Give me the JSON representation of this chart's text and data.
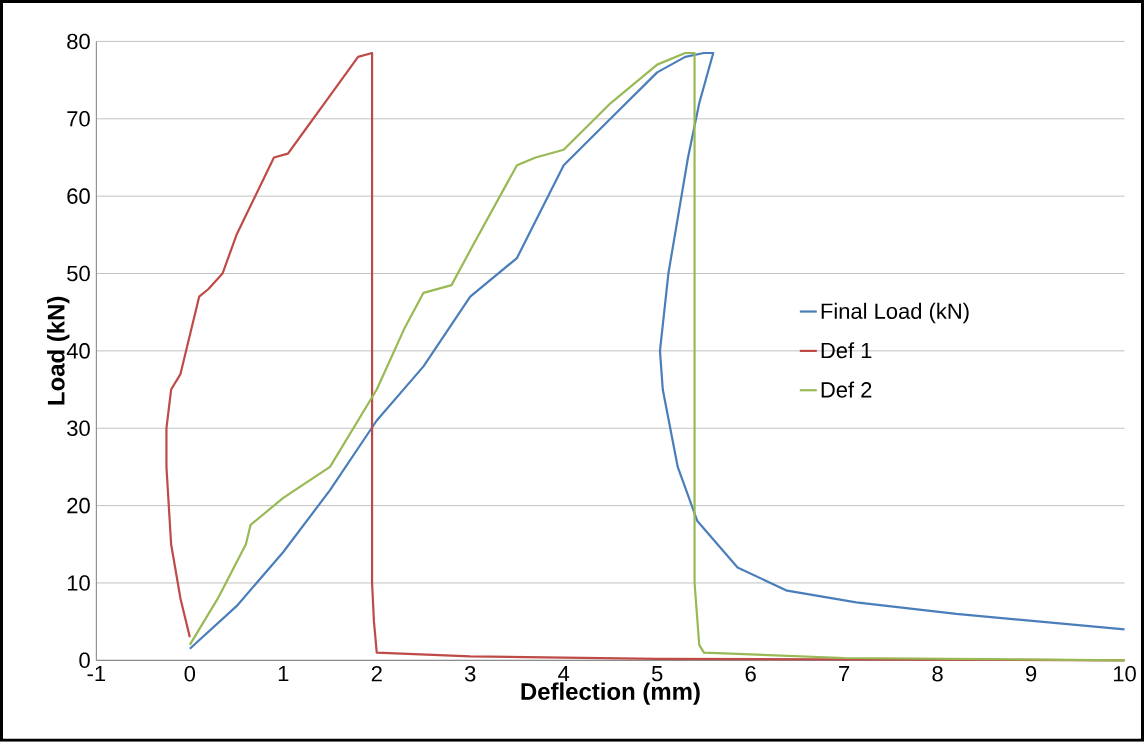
{
  "chart_data": {
    "type": "line",
    "xlabel": "Deflection (mm)",
    "ylabel": "Load (kN)",
    "xlim": [
      -1,
      10
    ],
    "ylim": [
      0,
      80
    ],
    "xticks": [
      -1,
      0,
      1,
      2,
      3,
      4,
      5,
      6,
      7,
      8,
      9,
      10
    ],
    "yticks": [
      0,
      10,
      20,
      30,
      40,
      50,
      60,
      70,
      80
    ],
    "grid": "y",
    "legend": "right",
    "marker": "none",
    "series": [
      {
        "name": "Final Load (kN)",
        "color": "#4a7ebb",
        "x": [
          0,
          0.5,
          1,
          1.5,
          2,
          2.5,
          3,
          3.5,
          4,
          4.5,
          5,
          5.3,
          5.5,
          5.6,
          5.45,
          5.33,
          5.12,
          5.03,
          5.06,
          5.22,
          5.43,
          5.86,
          6.39,
          7.13,
          8.2,
          10
        ],
        "values": [
          1.5,
          7,
          14,
          22,
          31,
          38,
          47,
          52,
          64,
          70,
          76,
          78,
          78.5,
          78.5,
          72,
          65,
          50,
          40,
          35,
          25,
          18,
          12,
          9,
          7.5,
          6,
          4
        ]
      },
      {
        "name": "Def 1",
        "color": "#be4b48",
        "x": [
          0,
          -0.1,
          -0.2,
          -0.25,
          -0.25,
          -0.2,
          -0.1,
          0.1,
          0.2,
          0.35,
          0.5,
          0.7,
          0.9,
          1.05,
          1.2,
          1.5,
          1.8,
          1.95,
          1.95,
          1.97,
          2.0,
          3,
          5,
          10
        ],
        "values": [
          3,
          8,
          15,
          25,
          30,
          35,
          37,
          47,
          48,
          50,
          55,
          60,
          65,
          65.5,
          68,
          73,
          78,
          78.5,
          10,
          5,
          1,
          0.5,
          0.2,
          0
        ]
      },
      {
        "name": "Def 2",
        "color": "#98b954",
        "x": [
          0,
          0.3,
          0.6,
          0.65,
          1,
          1.5,
          2,
          2.3,
          2.5,
          2.8,
          3,
          3.5,
          3.7,
          4,
          4.5,
          5,
          5.3,
          5.4,
          5.4,
          5.45,
          5.5,
          7,
          10
        ],
        "values": [
          2,
          8,
          15,
          17.5,
          21,
          25,
          35,
          43,
          47.5,
          48.5,
          53,
          64,
          65,
          66,
          72,
          77,
          78.5,
          78.5,
          10,
          2,
          1,
          0.3,
          0
        ]
      }
    ]
  }
}
